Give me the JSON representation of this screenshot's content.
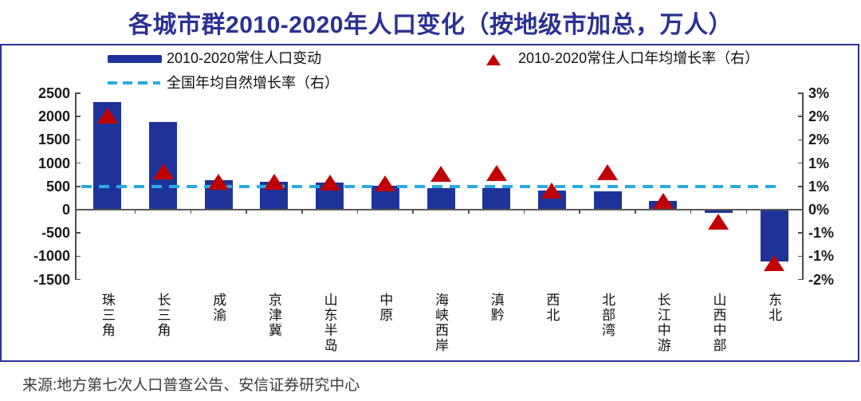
{
  "title": "各城市群2010-2020年人口变化（按地级市加总，万人）",
  "source": "来源:地方第七次人口普查公告、安信证券研究中心",
  "legend": {
    "bar": "2010-2020常住人口变动",
    "triangle": "2010-2020常住人口年均增长率（右）",
    "dashed": "全国年均自然增长率（右）"
  },
  "colors": {
    "bar": "#1e3399",
    "triangle": "#c00000",
    "dashed_line": "#29abe2",
    "frame": "#2e3192",
    "title_text": "#2b3192",
    "axis_line": "#595959"
  },
  "chart_data": {
    "type": "bar",
    "subtype": "dual-axis column chart with triangle scatter markers and dashed reference line",
    "title": "各城市群2010-2020年人口变化（按地级市加总，万人）",
    "categories": [
      "珠三角",
      "长三角",
      "成渝",
      "京津冀",
      "山东半岛",
      "中原",
      "海峡西岸",
      "滇黔",
      "西北",
      "北部湾",
      "长江中游",
      "山西中部",
      "东北"
    ],
    "series": [
      {
        "name": "2010-2020常住人口变动",
        "type": "bar",
        "axis": "left",
        "unit": "万人",
        "values": [
          2310,
          1890,
          630,
          600,
          590,
          515,
          465,
          460,
          410,
          400,
          185,
          -60,
          -1120
        ]
      },
      {
        "name": "2010-2020常住人口年均增长率（右）",
        "type": "scatter",
        "marker": "triangle",
        "axis": "right",
        "unit": "%",
        "values": [
          2.4,
          0.9,
          0.62,
          0.62,
          0.6,
          0.58,
          0.83,
          0.85,
          0.38,
          0.88,
          0.12,
          -0.45,
          -1.55
        ]
      },
      {
        "name": "全国年均自然增长率（右）",
        "type": "refline",
        "axis": "right",
        "unit": "%",
        "value": 0.5
      }
    ],
    "left_axis": {
      "min": -1500,
      "max": 2500,
      "tick_step": 500,
      "tick_labels": [
        "2500",
        "2000",
        "1500",
        "1000",
        "500",
        "0",
        "-500",
        "-1000",
        "-1500"
      ]
    },
    "right_axis": {
      "min": -2,
      "max": 3,
      "tick_step": 0.625,
      "tick_labels": [
        "3%",
        "2%",
        "2%",
        "1%",
        "1%",
        "0%",
        "-1%",
        "-1%",
        "-2%"
      ]
    },
    "grid": false,
    "legend_position": "top-left / top-right inside plot"
  }
}
